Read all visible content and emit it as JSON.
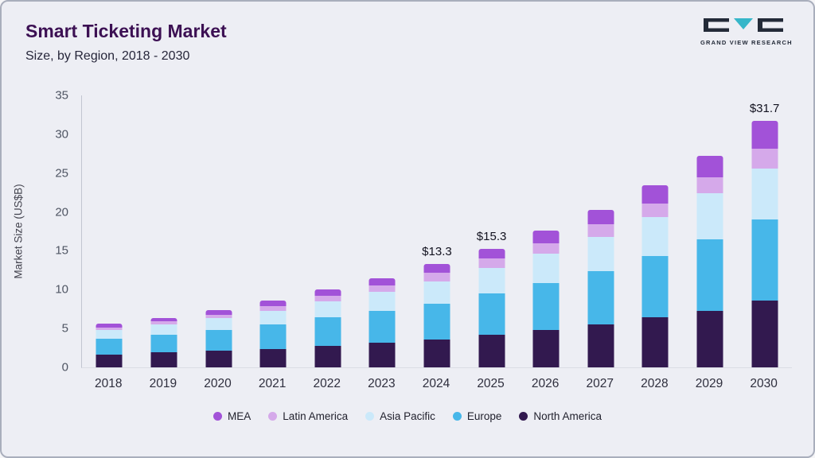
{
  "header": {
    "title": "Smart Ticketing Market",
    "subtitle": "Size, by Region, 2018 - 2030"
  },
  "logo": {
    "text": "GRAND VIEW RESEARCH"
  },
  "chart_data": {
    "type": "bar",
    "stacked": true,
    "title": "Smart Ticketing Market Size, by Region, 2018 - 2030",
    "ylabel": "Market Size (US$B)",
    "ylim": [
      0,
      35
    ],
    "yticks": [
      0,
      5,
      10,
      15,
      20,
      25,
      30,
      35
    ],
    "grid": false,
    "legend_position": "bottom",
    "categories": [
      "2018",
      "2019",
      "2020",
      "2021",
      "2022",
      "2023",
      "2024",
      "2025",
      "2026",
      "2027",
      "2028",
      "2029",
      "2030"
    ],
    "series": [
      {
        "name": "North America",
        "color": "#32194f",
        "values": [
          1.6,
          1.9,
          2.1,
          2.4,
          2.8,
          3.2,
          3.6,
          4.2,
          4.8,
          5.5,
          6.4,
          7.3,
          8.6
        ]
      },
      {
        "name": "Europe",
        "color": "#47b7e9",
        "values": [
          2.1,
          2.3,
          2.7,
          3.1,
          3.6,
          4.1,
          4.6,
          5.3,
          6.0,
          6.9,
          7.9,
          9.2,
          10.4
        ]
      },
      {
        "name": "Asia Pacific",
        "color": "#cbe9fa",
        "values": [
          1.1,
          1.3,
          1.5,
          1.8,
          2.1,
          2.4,
          2.9,
          3.3,
          3.8,
          4.4,
          5.0,
          5.9,
          6.6
        ]
      },
      {
        "name": "Latin America",
        "color": "#d5a9ea",
        "values": [
          0.35,
          0.4,
          0.5,
          0.6,
          0.7,
          0.85,
          1.1,
          1.2,
          1.4,
          1.6,
          1.8,
          2.1,
          2.5
        ]
      },
      {
        "name": "MEA",
        "color": "#a252d8",
        "values": [
          0.45,
          0.5,
          0.6,
          0.7,
          0.8,
          0.95,
          1.1,
          1.3,
          1.6,
          1.9,
          2.3,
          2.7,
          3.6
        ]
      }
    ],
    "legend_order": [
      "MEA",
      "Latin America",
      "Asia Pacific",
      "Europe",
      "North America"
    ],
    "annotations": {
      "2024": "$13.3",
      "2025": "$15.3",
      "2030": "$31.7"
    }
  }
}
